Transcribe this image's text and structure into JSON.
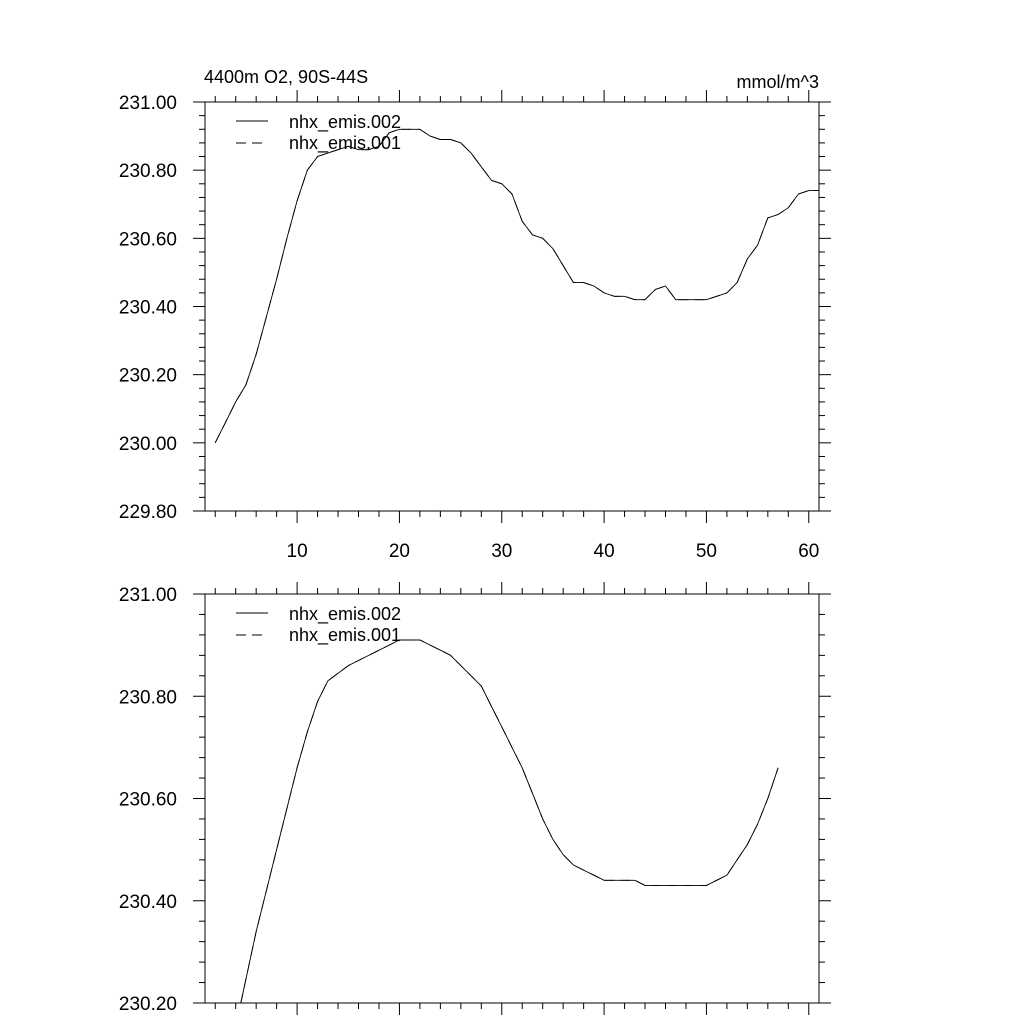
{
  "chart_data": [
    {
      "type": "line",
      "title": "4400m O2, 90S-44S",
      "units": "mmol/m^3",
      "xlim": [
        1,
        61
      ],
      "ylim": [
        229.8,
        231.0
      ],
      "xticks": [
        10,
        20,
        30,
        40,
        50,
        60
      ],
      "xtick_labels": [
        "10",
        "20",
        "30",
        "40",
        "50",
        "60"
      ],
      "yticks": [
        229.8,
        230.0,
        230.2,
        230.4,
        230.6,
        230.8,
        231.0
      ],
      "ytick_labels": [
        "229.80",
        "230.00",
        "230.20",
        "230.40",
        "230.60",
        "230.80",
        "231.00"
      ],
      "legend": [
        "nhx_emis.002",
        "nhx_emis.001"
      ],
      "series": [
        {
          "name": "nhx_emis.002",
          "x": [
            2,
            3,
            4,
            5,
            6,
            7,
            8,
            9,
            10,
            11,
            12,
            13,
            14,
            15,
            16,
            17,
            18,
            19,
            20,
            21,
            22,
            23,
            24,
            25,
            26,
            27,
            28,
            29,
            30,
            31,
            32,
            33,
            34,
            35,
            36,
            37,
            38,
            39,
            40,
            41,
            42,
            43,
            44,
            45,
            46,
            47,
            48,
            49,
            50,
            51,
            52,
            53,
            54,
            55,
            56,
            57,
            58,
            59,
            60,
            61
          ],
          "values": [
            230.0,
            230.06,
            230.12,
            230.17,
            230.26,
            230.37,
            230.48,
            230.6,
            230.71,
            230.8,
            230.84,
            230.85,
            230.86,
            230.87,
            230.86,
            230.86,
            230.87,
            230.91,
            230.92,
            230.92,
            230.92,
            230.9,
            230.89,
            230.89,
            230.88,
            230.85,
            230.81,
            230.77,
            230.76,
            230.73,
            230.65,
            230.61,
            230.6,
            230.57,
            230.52,
            230.47,
            230.47,
            230.46,
            230.44,
            230.43,
            230.43,
            230.42,
            230.42,
            230.45,
            230.46,
            230.42,
            230.42,
            230.42,
            230.42,
            230.43,
            230.44,
            230.47,
            230.54,
            230.58,
            230.66,
            230.67,
            230.69,
            230.73,
            230.74,
            230.74
          ]
        },
        {
          "name": "nhx_emis.001",
          "x": [
            2,
            3,
            4,
            5,
            6,
            7,
            8,
            9,
            10,
            11,
            12,
            13,
            14,
            15,
            16,
            17,
            18,
            19,
            20,
            21,
            22,
            23,
            24,
            25,
            26,
            27,
            28,
            29,
            30,
            31,
            32,
            33,
            34,
            35,
            36,
            37,
            38,
            39,
            40,
            41,
            42,
            43,
            44,
            45,
            46,
            47,
            48,
            49,
            50,
            51,
            52,
            53,
            54,
            55,
            56,
            57,
            58,
            59,
            60,
            61
          ],
          "values": [
            230.0,
            230.06,
            230.12,
            230.17,
            230.26,
            230.37,
            230.48,
            230.6,
            230.71,
            230.8,
            230.84,
            230.85,
            230.86,
            230.87,
            230.86,
            230.86,
            230.87,
            230.91,
            230.92,
            230.92,
            230.92,
            230.9,
            230.89,
            230.89,
            230.88,
            230.85,
            230.81,
            230.77,
            230.76,
            230.73,
            230.65,
            230.61,
            230.6,
            230.57,
            230.52,
            230.47,
            230.47,
            230.46,
            230.44,
            230.43,
            230.43,
            230.42,
            230.42,
            230.45,
            230.46,
            230.42,
            230.42,
            230.42,
            230.42,
            230.43,
            230.44,
            230.47,
            230.54,
            230.58,
            230.66,
            230.67,
            230.69,
            230.73,
            230.74,
            230.74
          ]
        }
      ]
    },
    {
      "type": "line",
      "title": "",
      "xlim": [
        1,
        61
      ],
      "ylim": [
        230.2,
        231.0
      ],
      "xticks": [
        10,
        20,
        30,
        40,
        50,
        60
      ],
      "xtick_labels": [],
      "yticks": [
        230.2,
        230.4,
        230.6,
        230.8,
        231.0
      ],
      "ytick_labels": [
        "230.20",
        "230.40",
        "230.60",
        "230.80",
        "231.00"
      ],
      "legend": [
        "nhx_emis.002",
        "nhx_emis.001"
      ],
      "series": [
        {
          "name": "nhx_emis.002",
          "x": [
            4.5,
            6,
            8,
            10,
            11,
            12,
            13,
            15,
            17,
            19,
            20,
            21,
            22,
            23,
            24,
            25,
            26,
            27,
            28,
            29,
            30,
            31,
            32,
            33,
            34,
            35,
            36,
            37,
            38,
            39,
            40,
            41,
            42,
            43,
            44,
            45,
            46,
            47,
            48,
            49,
            50,
            51,
            52,
            53,
            54,
            55,
            56,
            57
          ],
          "values": [
            230.2,
            230.34,
            230.5,
            230.66,
            230.73,
            230.79,
            230.83,
            230.86,
            230.88,
            230.9,
            230.91,
            230.91,
            230.91,
            230.9,
            230.89,
            230.88,
            230.86,
            230.84,
            230.82,
            230.78,
            230.74,
            230.7,
            230.66,
            230.61,
            230.56,
            230.52,
            230.49,
            230.47,
            230.46,
            230.45,
            230.44,
            230.44,
            230.44,
            230.44,
            230.43,
            230.43,
            230.43,
            230.43,
            230.43,
            230.43,
            230.43,
            230.44,
            230.45,
            230.48,
            230.51,
            230.55,
            230.6,
            230.66
          ]
        },
        {
          "name": "nhx_emis.001",
          "x": [
            4.5,
            6,
            8,
            10,
            11,
            12,
            13,
            15,
            17,
            19,
            20,
            21,
            22,
            23,
            24,
            25,
            26,
            27,
            28,
            29,
            30,
            31,
            32,
            33,
            34,
            35,
            36,
            37,
            38,
            39,
            40,
            41,
            42,
            43,
            44,
            45,
            46,
            47,
            48,
            49,
            50,
            51,
            52,
            53,
            54,
            55,
            56,
            57
          ],
          "values": [
            230.2,
            230.34,
            230.5,
            230.66,
            230.73,
            230.79,
            230.83,
            230.86,
            230.88,
            230.9,
            230.91,
            230.91,
            230.91,
            230.9,
            230.89,
            230.88,
            230.86,
            230.84,
            230.82,
            230.78,
            230.74,
            230.7,
            230.66,
            230.61,
            230.56,
            230.52,
            230.49,
            230.47,
            230.46,
            230.45,
            230.44,
            230.44,
            230.44,
            230.44,
            230.43,
            230.43,
            230.43,
            230.43,
            230.43,
            230.43,
            230.43,
            230.44,
            230.45,
            230.48,
            230.51,
            230.55,
            230.6,
            230.66
          ]
        }
      ]
    }
  ]
}
